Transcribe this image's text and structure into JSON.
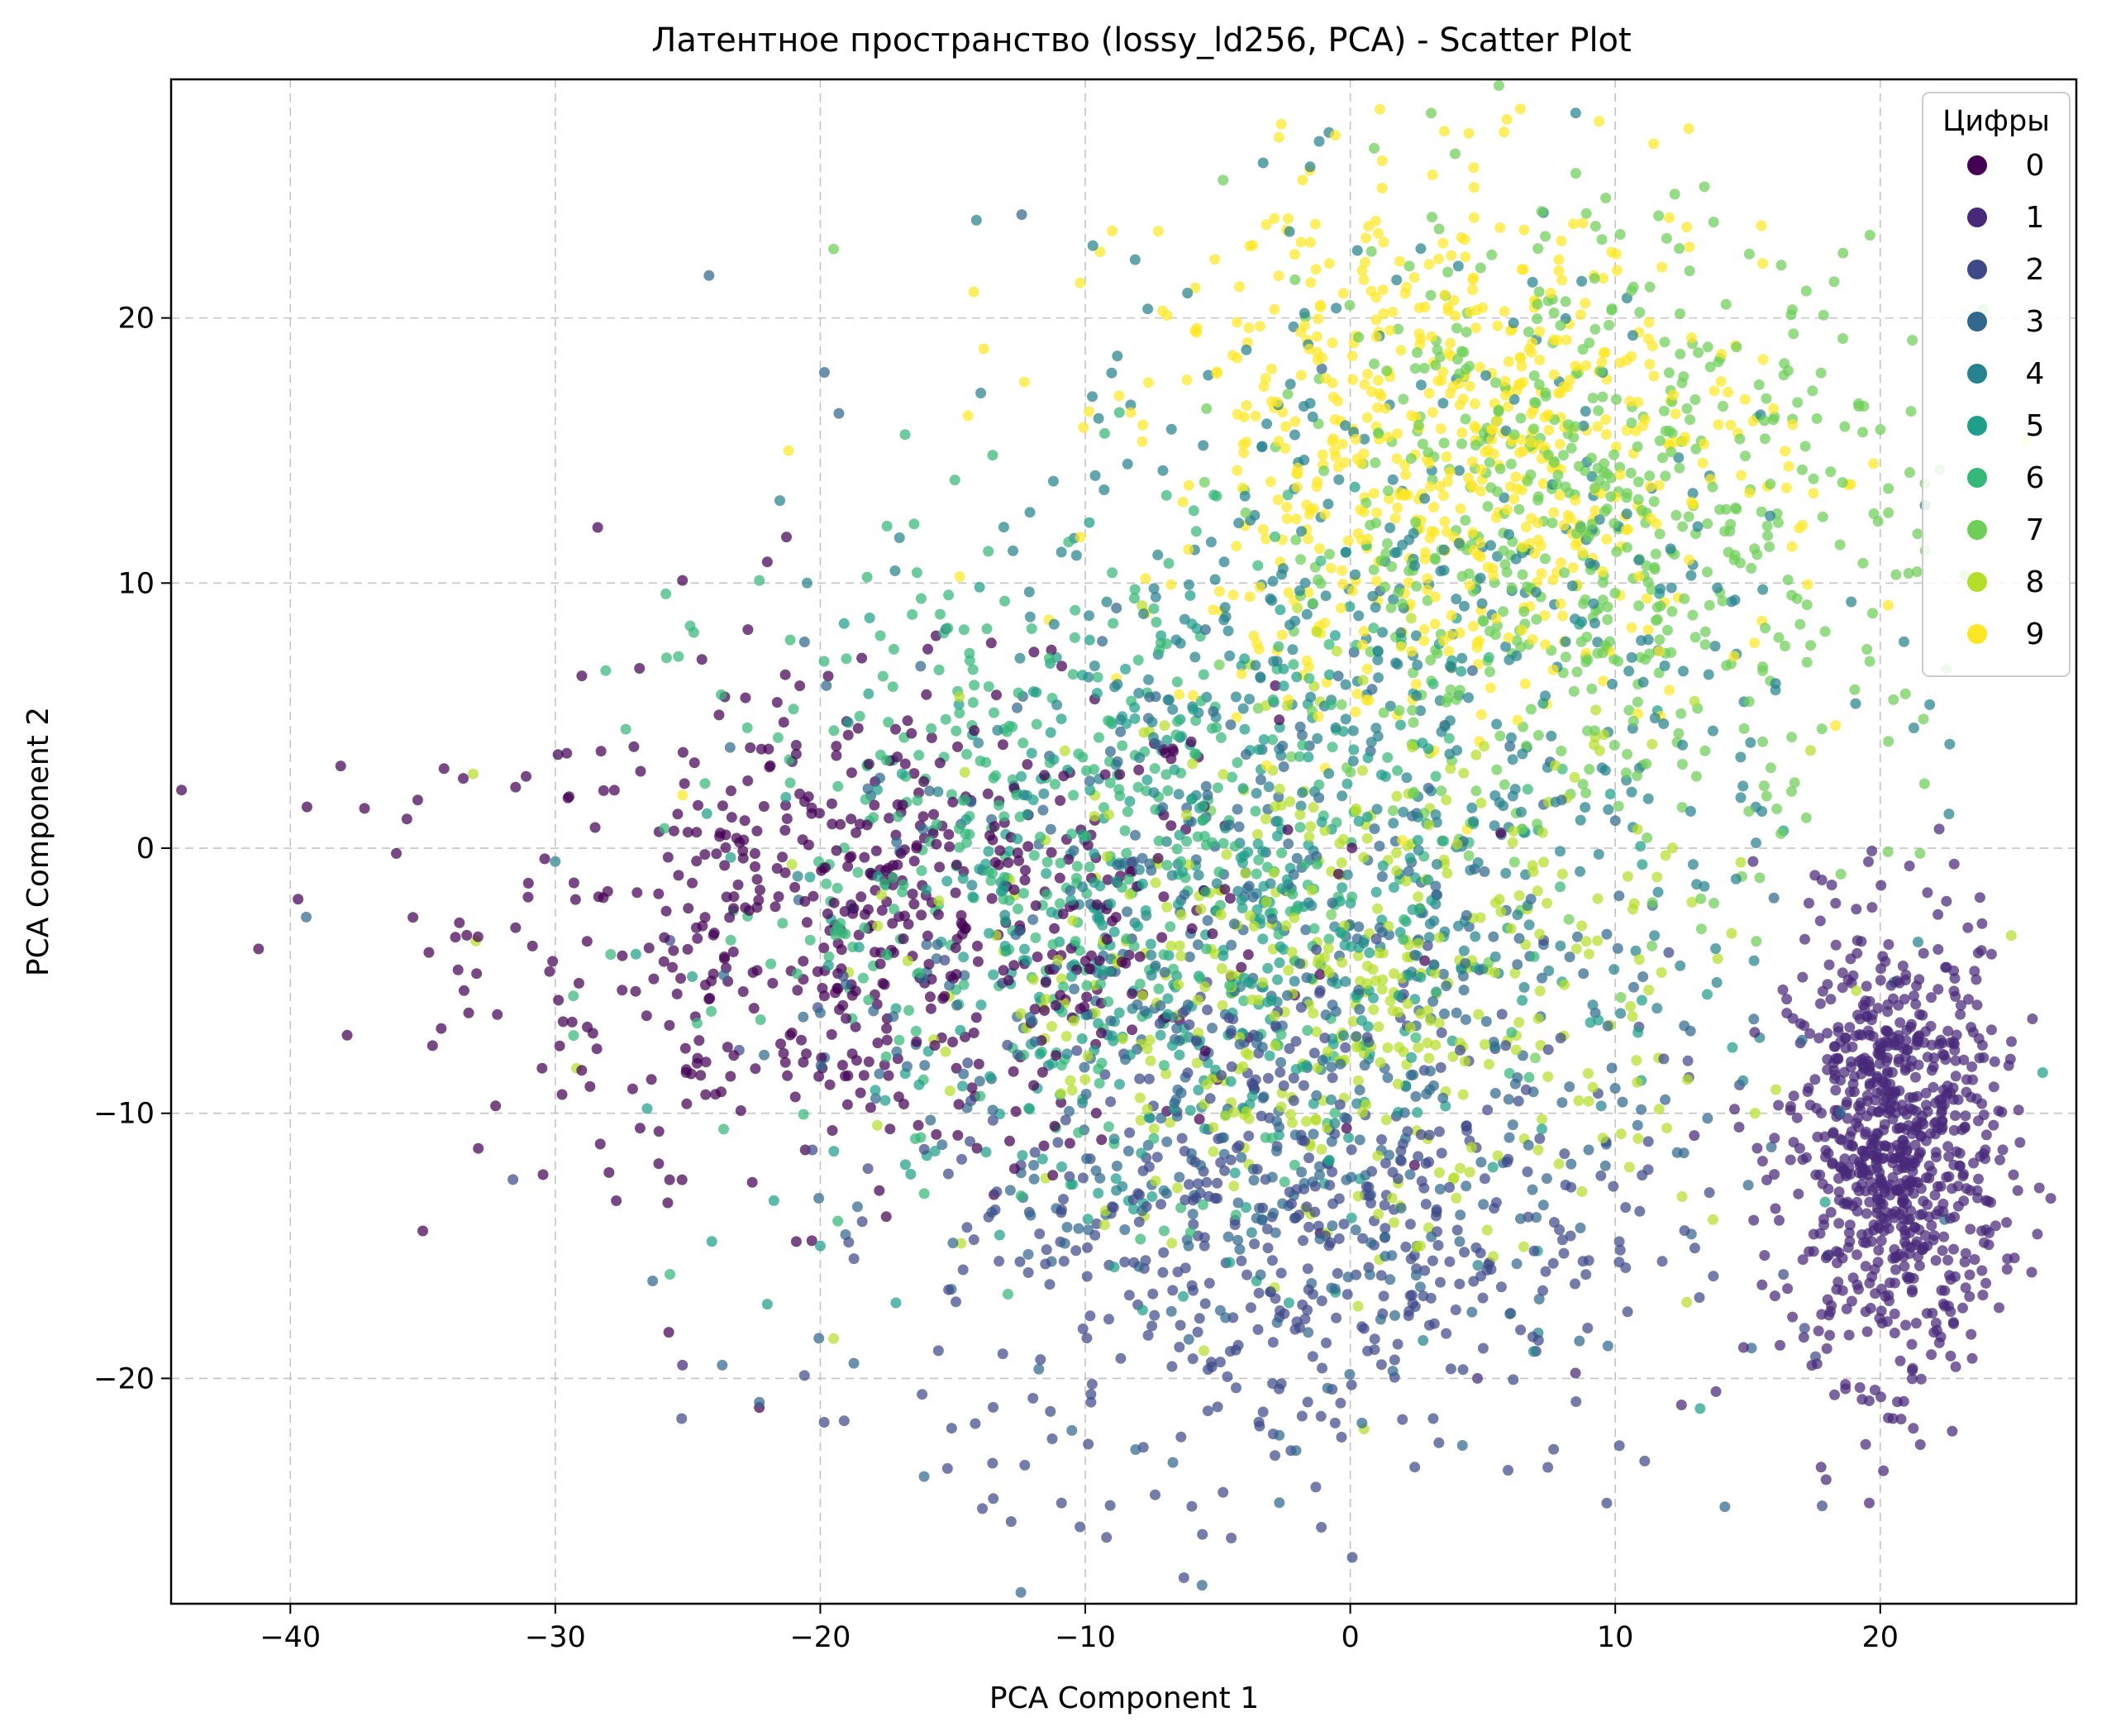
{
  "chart_data": {
    "type": "scatter",
    "title": "Латентное пространство (lossy_ld256, PCA) - Scatter Plot",
    "xlabel": "PCA Component 1",
    "ylabel": "PCA Component 2",
    "xlim": [
      -44.5,
      27.4
    ],
    "ylim": [
      -28.5,
      29.0
    ],
    "x_ticks": [
      -40,
      -30,
      -20,
      -10,
      0,
      10,
      20
    ],
    "x_tick_labels": [
      "−40",
      "−30",
      "−20",
      "−10",
      "0",
      "10",
      "20"
    ],
    "y_ticks": [
      -20,
      -10,
      0,
      10,
      20
    ],
    "y_tick_labels": [
      "−20",
      "−10",
      "0",
      "10",
      "20"
    ],
    "grid": true,
    "legend": {
      "title": "Цифры",
      "placement": "top-right"
    },
    "series": [
      {
        "name": "0",
        "color": "#440154",
        "cluster": {
          "cx": -18.0,
          "cy": -3.0,
          "sx": 7.5,
          "sy": 4.5,
          "n": 600
        },
        "points": [
          [
            -41.2,
            -3.8
          ],
          [
            -38.1,
            3.1
          ],
          [
            -37.2,
            1.5
          ],
          [
            -36.0,
            -0.2
          ],
          [
            -35.6,
            1.1
          ],
          [
            -34.2,
            3.0
          ],
          [
            -31.5,
            -3.0
          ],
          [
            -30.5,
            -8.3
          ],
          [
            -28.4,
            12.1
          ],
          [
            -25.2,
            10.1
          ],
          [
            -24.0,
            -3.2
          ],
          [
            -22.0,
            10.8
          ],
          [
            -20.5,
            -2.8
          ],
          [
            -27.7,
            -13.3
          ],
          [
            -26.1,
            -11.9
          ],
          [
            -29.0,
            6.5
          ],
          [
            -23.0,
            -9.9
          ],
          [
            -17.5,
            -6.8
          ]
        ]
      },
      {
        "name": "1",
        "color": "#482878",
        "cluster": {
          "cx": 20.5,
          "cy": -11.5,
          "sx": 2.0,
          "sy": 4.2,
          "n": 800
        },
        "points": [
          [
            24.2,
            -4.0
          ],
          [
            23.9,
            -7.9
          ],
          [
            12.5,
            -21.0
          ],
          [
            13.8,
            -20.5
          ],
          [
            15.2,
            -0.5
          ],
          [
            17.8,
            -1.2
          ],
          [
            22.5,
            -2.0
          ],
          [
            8.5,
            -19.8
          ],
          [
            4.8,
            -20.0
          ],
          [
            -25.2,
            -19.5
          ]
        ]
      },
      {
        "name": "2",
        "color": "#3e4989",
        "cluster": {
          "cx": -2.0,
          "cy": -14.0,
          "sx": 7.0,
          "sy": 5.0,
          "n": 500
        },
        "points": [
          [
            -10.2,
            -25.6
          ],
          [
            -9.2,
            -26.0
          ],
          [
            -12.8,
            -25.4
          ],
          [
            -13.5,
            -23.2
          ],
          [
            -10.9,
            -24.7
          ],
          [
            -4.8,
            -24.3
          ],
          [
            -1.3,
            -24.1
          ],
          [
            -15.2,
            -23.4
          ],
          [
            -19.1,
            -21.6
          ],
          [
            -31.6,
            -12.5
          ],
          [
            -2.6,
            -20.2
          ]
        ]
      },
      {
        "name": "3",
        "color": "#31688e",
        "cluster": {
          "cx": -4.0,
          "cy": -7.0,
          "sx": 8.0,
          "sy": 7.0,
          "n": 500
        },
        "points": [
          [
            -24.2,
            21.6
          ],
          [
            -19.3,
            16.4
          ],
          [
            -12.4,
            23.9
          ],
          [
            -39.4,
            -2.6
          ],
          [
            -23.7,
            -19.5
          ],
          [
            -22.3,
            -20.9
          ]
        ]
      },
      {
        "name": "4",
        "color": "#26828e",
        "cluster": {
          "cx": 2.0,
          "cy": 6.0,
          "sx": 8.0,
          "sy": 8.0,
          "n": 500
        },
        "points": [
          [
            -20.5,
            10.0
          ],
          [
            -30.0,
            -0.5
          ]
        ]
      },
      {
        "name": "5",
        "color": "#1f9e89",
        "cluster": {
          "cx": -6.0,
          "cy": -3.0,
          "sx": 7.5,
          "sy": 6.0,
          "n": 400
        },
        "points": [
          [
            -22.0,
            -17.2
          ],
          [
            -20.0,
            -15.0
          ]
        ]
      },
      {
        "name": "6",
        "color": "#35b779",
        "cluster": {
          "cx": -10.0,
          "cy": 0.0,
          "sx": 7.0,
          "sy": 6.0,
          "n": 450
        },
        "points": [
          [
            -22.3,
            10.1
          ],
          [
            -28.1,
            6.7
          ],
          [
            -16.8,
            15.6
          ]
        ]
      },
      {
        "name": "7",
        "color": "#6ece58",
        "cluster": {
          "cx": 9.0,
          "cy": 12.0,
          "sx": 6.0,
          "sy": 6.0,
          "n": 600
        },
        "points": [
          [
            0.9,
            26.4
          ],
          [
            -4.8,
            25.2
          ],
          [
            17.8,
            4.5
          ],
          [
            20.5,
            5.6
          ],
          [
            21.5,
            -0.2
          ],
          [
            19.5,
            7.5
          ],
          [
            -19.5,
            22.6
          ]
        ]
      },
      {
        "name": "8",
        "color": "#b5de2b",
        "cluster": {
          "cx": 0.0,
          "cy": -5.0,
          "sx": 7.0,
          "sy": 5.0,
          "n": 450
        },
        "points": [
          [
            -19.5,
            -18.5
          ],
          [
            -33.0,
            -3.5
          ],
          [
            -33.1,
            2.8
          ],
          [
            -29.2,
            -8.3
          ]
        ]
      },
      {
        "name": "9",
        "color": "#fde725",
        "cluster": {
          "cx": 4.0,
          "cy": 15.0,
          "sx": 6.0,
          "sy": 5.0,
          "n": 650
        },
        "points": [
          [
            -21.2,
            15.0
          ],
          [
            3.1,
            25.4
          ],
          [
            1.2,
            24.9
          ],
          [
            -1.8,
            25.2
          ],
          [
            -25.2,
            2.0
          ]
        ]
      }
    ]
  }
}
